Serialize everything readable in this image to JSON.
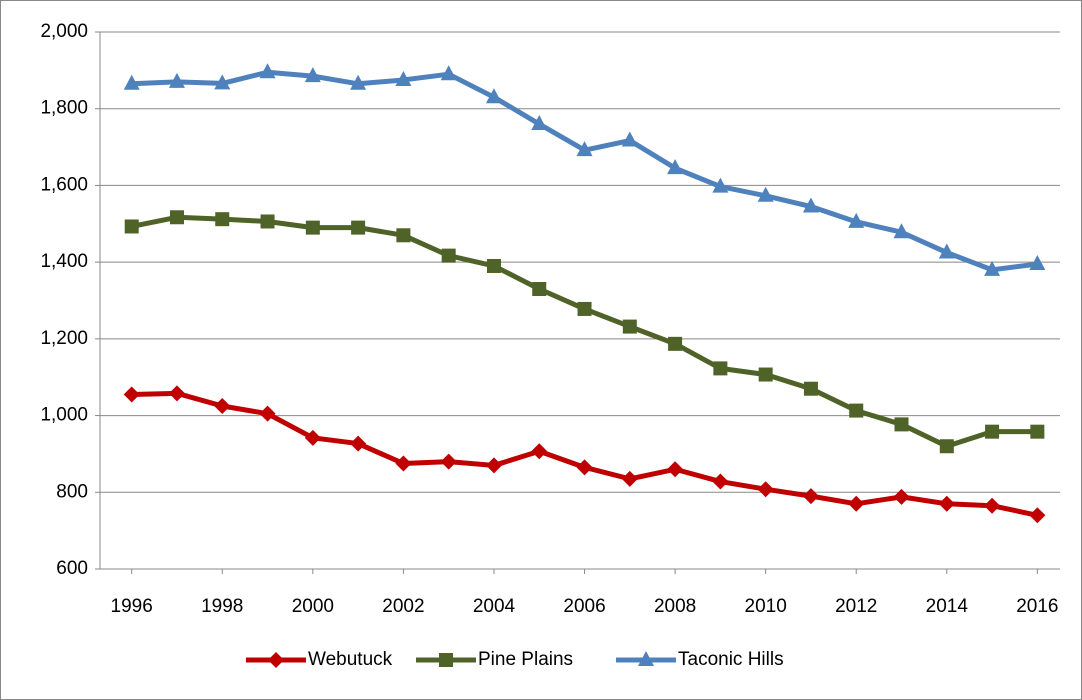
{
  "chart_data": {
    "type": "line",
    "x": [
      1996,
      1997,
      1998,
      1999,
      2000,
      2001,
      2002,
      2003,
      2004,
      2005,
      2006,
      2007,
      2008,
      2009,
      2010,
      2011,
      2012,
      2013,
      2014,
      2015,
      2016
    ],
    "series": [
      {
        "name": "Webutuck",
        "color": "#c00000",
        "marker": "diamond",
        "values": [
          1055,
          1058,
          1025,
          1005,
          942,
          927,
          875,
          880,
          870,
          907,
          865,
          835,
          860,
          828,
          808,
          790,
          770,
          788,
          770,
          765,
          740
        ]
      },
      {
        "name": "Pine Plains",
        "color": "#4f6228",
        "marker": "square",
        "values": [
          1493,
          1517,
          1512,
          1506,
          1490,
          1490,
          1470,
          1417,
          1390,
          1330,
          1278,
          1232,
          1187,
          1123,
          1107,
          1070,
          1013,
          977,
          920,
          958,
          958
        ]
      },
      {
        "name": "Taconic Hills",
        "color": "#4f81bd",
        "marker": "triangle",
        "values": [
          1865,
          1870,
          1866,
          1895,
          1885,
          1865,
          1875,
          1890,
          1830,
          1760,
          1692,
          1717,
          1645,
          1597,
          1573,
          1545,
          1505,
          1478,
          1425,
          1380,
          1395
        ]
      }
    ],
    "xlim": [
      1995.3,
      2016.5
    ],
    "xticks": [
      1996,
      1998,
      2000,
      2002,
      2004,
      2006,
      2008,
      2010,
      2012,
      2014,
      2016
    ],
    "ylim": [
      600,
      2000
    ],
    "yticks": [
      600,
      800,
      {
        "value": 1000,
        "label": "1,000"
      },
      {
        "value": 1200,
        "label": "1,200"
      },
      {
        "value": 1400,
        "label": "1,400"
      },
      {
        "value": 1600,
        "label": "1,600"
      },
      {
        "value": 1800,
        "label": "1,800"
      },
      {
        "value": 2000,
        "label": "2,000"
      }
    ],
    "grid": true,
    "legend": "bottom"
  }
}
